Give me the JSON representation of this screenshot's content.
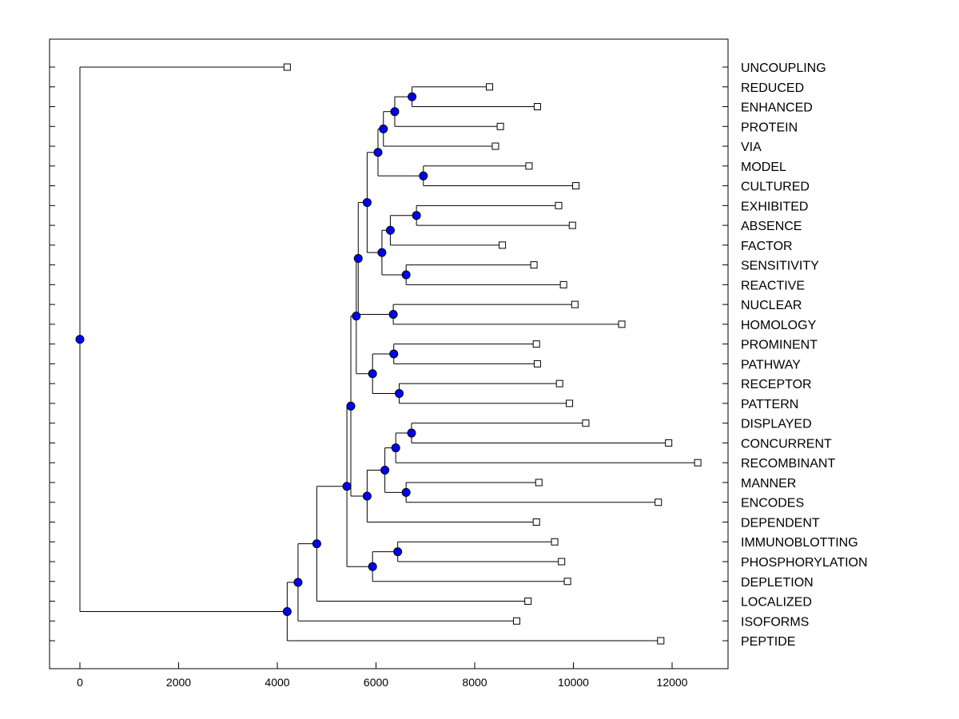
{
  "chart_data": {
    "type": "dendrogram",
    "title": "",
    "xlabel": "",
    "ylabel": "",
    "xlim": [
      -600,
      13100
    ],
    "x_ticks": [
      "0",
      "2000",
      "4000",
      "6000",
      "8000",
      "10000",
      "12000"
    ],
    "colors": {
      "node": "#0000ff",
      "leaf_box": "#ffffff",
      "line": "#000000"
    },
    "leaves": [
      {
        "label": "UNCOUPLING",
        "value": 4200
      },
      {
        "label": "REDUCED",
        "value": 8300
      },
      {
        "label": "ENHANCED",
        "value": 9270
      },
      {
        "label": "PROTEIN",
        "value": 8520
      },
      {
        "label": "VIA",
        "value": 8420
      },
      {
        "label": "MODEL",
        "value": 9100
      },
      {
        "label": "CULTURED",
        "value": 10050
      },
      {
        "label": "EXHIBITED",
        "value": 9700
      },
      {
        "label": "ABSENCE",
        "value": 9980
      },
      {
        "label": "FACTOR",
        "value": 8560
      },
      {
        "label": "SENSITIVITY",
        "value": 9200
      },
      {
        "label": "REACTIVE",
        "value": 9800
      },
      {
        "label": "NUCLEAR",
        "value": 10030
      },
      {
        "label": "HOMOLOGY",
        "value": 10980
      },
      {
        "label": "PROMINENT",
        "value": 9250
      },
      {
        "label": "PATHWAY",
        "value": 9270
      },
      {
        "label": "RECEPTOR",
        "value": 9720
      },
      {
        "label": "PATTERN",
        "value": 9920
      },
      {
        "label": "DISPLAYED",
        "value": 10250
      },
      {
        "label": "CONCURRENT",
        "value": 11930
      },
      {
        "label": "RECOMBINANT",
        "value": 12520
      },
      {
        "label": "MANNER",
        "value": 9300
      },
      {
        "label": "ENCODES",
        "value": 11720
      },
      {
        "label": "DEPENDENT",
        "value": 9250
      },
      {
        "label": "IMMUNOBLOTTING",
        "value": 9620
      },
      {
        "label": "PHOSPHORYLATION",
        "value": 9760
      },
      {
        "label": "DEPLETION",
        "value": 9880
      },
      {
        "label": "LOCALIZED",
        "value": 9080
      },
      {
        "label": "ISOFORMS",
        "value": 8850
      },
      {
        "label": "PEPTIDE",
        "value": 11770
      }
    ],
    "merges": [
      {
        "id": "n1",
        "children": [
          1,
          2
        ],
        "value": 6730
      },
      {
        "id": "n2",
        "children": [
          "n1",
          3
        ],
        "value": 6380
      },
      {
        "id": "n3",
        "children": [
          "n2",
          4
        ],
        "value": 6150
      },
      {
        "id": "n4",
        "children": [
          5,
          6
        ],
        "value": 6960
      },
      {
        "id": "n5",
        "children": [
          "n3",
          "n4"
        ],
        "value": 6040
      },
      {
        "id": "n6",
        "children": [
          7,
          8
        ],
        "value": 6820
      },
      {
        "id": "n7",
        "children": [
          "n6",
          9
        ],
        "value": 6290
      },
      {
        "id": "n8",
        "children": [
          10,
          11
        ],
        "value": 6610
      },
      {
        "id": "n9",
        "children": [
          "n7",
          "n8"
        ],
        "value": 6120
      },
      {
        "id": "n10",
        "children": [
          "n5",
          "n9"
        ],
        "value": 5820
      },
      {
        "id": "n11",
        "children": [
          12,
          13
        ],
        "value": 6350
      },
      {
        "id": "n12",
        "children": [
          "n10",
          "n11"
        ],
        "value": 5640
      },
      {
        "id": "n13",
        "children": [
          14,
          15
        ],
        "value": 6360
      },
      {
        "id": "n14",
        "children": [
          16,
          17
        ],
        "value": 6470
      },
      {
        "id": "n15",
        "children": [
          "n13",
          "n14"
        ],
        "value": 5930
      },
      {
        "id": "n16",
        "children": [
          "n12",
          "n15"
        ],
        "value": 5600
      },
      {
        "id": "n17",
        "children": [
          18,
          19
        ],
        "value": 6720
      },
      {
        "id": "n18",
        "children": [
          "n17",
          20
        ],
        "value": 6400
      },
      {
        "id": "n19",
        "children": [
          21,
          22
        ],
        "value": 6610
      },
      {
        "id": "n20",
        "children": [
          "n18",
          "n19"
        ],
        "value": 6180
      },
      {
        "id": "n21",
        "children": [
          "n20",
          23
        ],
        "value": 5820
      },
      {
        "id": "n22",
        "children": [
          "n16",
          "n21"
        ],
        "value": 5490
      },
      {
        "id": "n23",
        "children": [
          24,
          25
        ],
        "value": 6440
      },
      {
        "id": "n24",
        "children": [
          "n23",
          26
        ],
        "value": 5930
      },
      {
        "id": "n25",
        "children": [
          "n22",
          "n24"
        ],
        "value": 5410
      },
      {
        "id": "n26",
        "children": [
          "n25",
          27
        ],
        "value": 4800
      },
      {
        "id": "n27",
        "children": [
          "n26",
          28
        ],
        "value": 4420
      },
      {
        "id": "n28",
        "children": [
          "n27",
          29
        ],
        "value": 4200
      },
      {
        "id": "n29",
        "children": [
          0,
          "n28"
        ],
        "value": 0
      }
    ]
  }
}
